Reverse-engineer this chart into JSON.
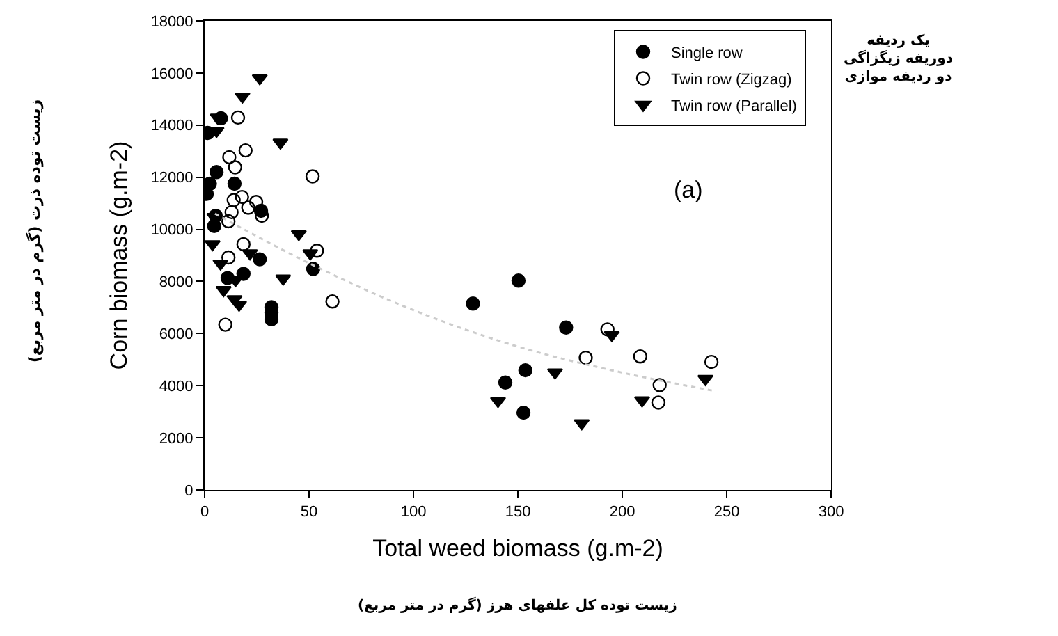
{
  "chart_data": {
    "type": "scatter",
    "xlabel": "Total weed biomass (g.m-2)",
    "ylabel": "Corn biomass (g.m-2)",
    "xlim": [
      0,
      300
    ],
    "xticks": [
      0,
      50,
      100,
      150,
      200,
      250,
      300
    ],
    "ylim": [
      0,
      18000
    ],
    "yticks": [
      0,
      2000,
      4000,
      6000,
      8000,
      10000,
      12000,
      14000,
      16000,
      18000
    ],
    "legend": "top right",
    "annotations": [
      "(a)",
      "یک ردیفه\nدوریفه زیگزاگی\nدو ردیفه موازی",
      "زیست توده ذرت (گرم در متر مربع)",
      "زیست توده کل علفهای هرز (گرم در متر مربع)"
    ],
    "series": [
      {
        "name": "Single row",
        "color": "#000000",
        "marker": "circle",
        "x": [
          1.5,
          7.8,
          2.5,
          5.7,
          1,
          14.3,
          5.3,
          4.6,
          27,
          26.4,
          11,
          18.6,
          32,
          32,
          32,
          52,
          128.5,
          150.3,
          173.1,
          153.6,
          144,
          152.7
        ],
        "values": [
          13700,
          14260,
          11750,
          12200,
          11360,
          11750,
          10520,
          10130,
          10710,
          8850,
          8130,
          8290,
          7010,
          6800,
          6550,
          8480,
          7150,
          8030,
          6230,
          4590,
          4120,
          2960
        ]
      },
      {
        "name": "Twin row (Zigzag)",
        "color": "#000000",
        "marker": "circle-open",
        "x": [
          16,
          19.6,
          11.8,
          14.6,
          51.7,
          13.9,
          17.9,
          24.7,
          20.9,
          27.4,
          12.9,
          11.4,
          18.6,
          53.8,
          11.4,
          61.2,
          9.9,
          192.9,
          182.5,
          208.6,
          217.9,
          217.3,
          242.7
        ],
        "values": [
          14290,
          13030,
          12770,
          12380,
          12030,
          11120,
          11240,
          11050,
          10830,
          10520,
          10660,
          10310,
          9430,
          9180,
          8920,
          7230,
          6340,
          6160,
          5070,
          5120,
          4020,
          3350,
          4910
        ]
      },
      {
        "name": "Twin row (Parallel)",
        "color": "#000000",
        "marker": "triangle-down",
        "x": [
          26.4,
          18.1,
          6.3,
          5.7,
          36.3,
          4.6,
          45.1,
          3.8,
          50.6,
          21.7,
          7.6,
          14.8,
          37.6,
          9.1,
          14.3,
          16.5,
          195,
          167.8,
          140.5,
          180.6,
          209.5,
          239.8
        ],
        "values": [
          15800,
          15100,
          14290,
          13780,
          13330,
          10480,
          9820,
          9430,
          9080,
          9080,
          8690,
          8060,
          8110,
          7670,
          7320,
          7110,
          5950,
          4510,
          3420,
          2560,
          3440,
          4260
        ]
      },
      {
        "type": "line",
        "color": "#cccccc",
        "line_style": "dotted",
        "x": [
          5,
          50,
          100,
          150,
          200,
          244
        ],
        "values": [
          10600,
          8700,
          6900,
          5500,
          4500,
          3800
        ]
      }
    ]
  }
}
